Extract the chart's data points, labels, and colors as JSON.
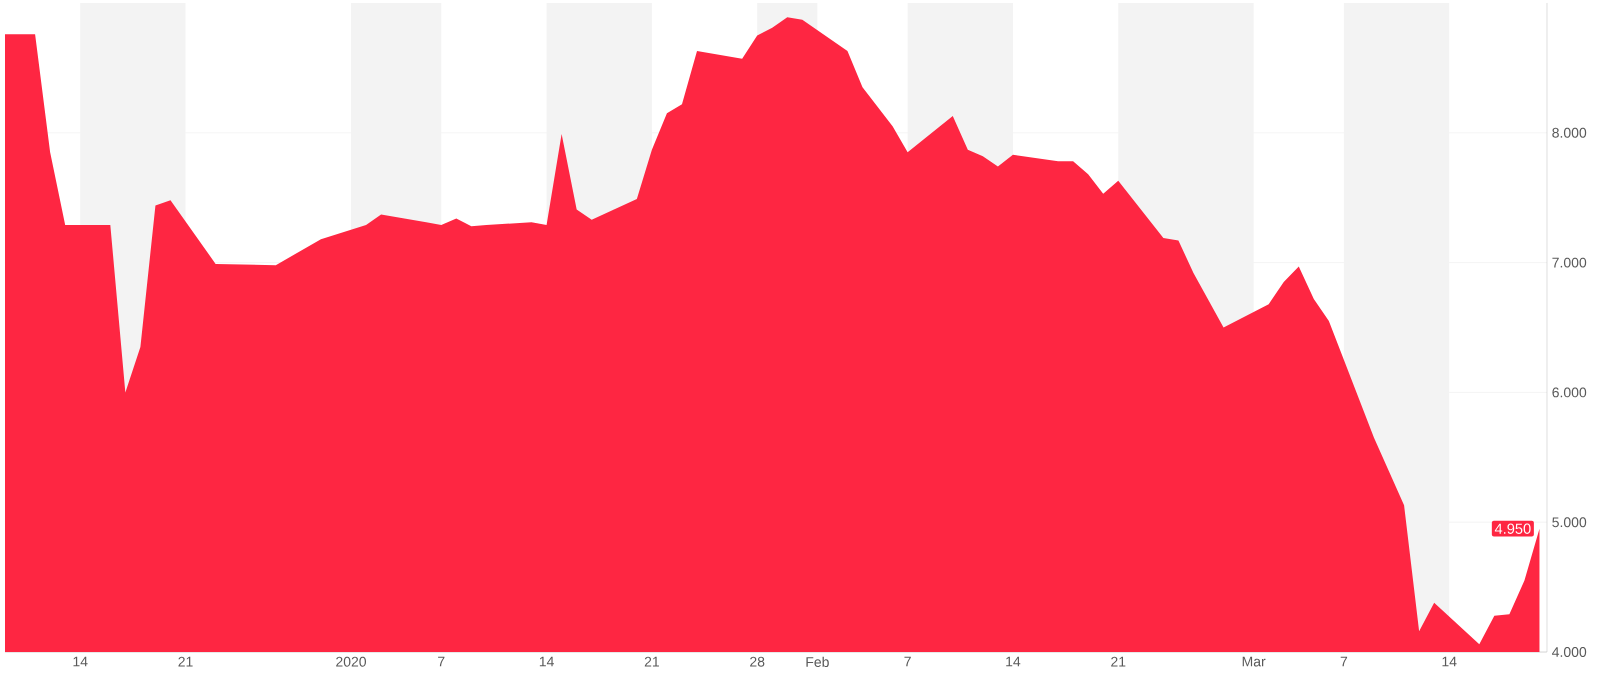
{
  "chart_data": {
    "type": "area",
    "color": "#fe2642",
    "x": [
      "2019-12-09",
      "2019-12-10",
      "2019-12-11",
      "2019-12-12",
      "2019-12-13",
      "2019-12-16",
      "2019-12-17",
      "2019-12-18",
      "2019-12-19",
      "2019-12-20",
      "2019-12-23",
      "2019-12-27",
      "2019-12-30",
      "2020-01-02",
      "2020-01-03",
      "2020-01-06",
      "2020-01-07",
      "2020-01-08",
      "2020-01-09",
      "2020-01-10",
      "2020-01-13",
      "2020-01-14",
      "2020-01-15",
      "2020-01-16",
      "2020-01-17",
      "2020-01-20",
      "2020-01-21",
      "2020-01-22",
      "2020-01-23",
      "2020-01-24",
      "2020-01-27",
      "2020-01-28",
      "2020-01-29",
      "2020-01-30",
      "2020-01-31",
      "2020-02-03",
      "2020-02-04",
      "2020-02-05",
      "2020-02-06",
      "2020-02-07",
      "2020-02-10",
      "2020-02-11",
      "2020-02-12",
      "2020-02-13",
      "2020-02-14",
      "2020-02-17",
      "2020-02-18",
      "2020-02-19",
      "2020-02-20",
      "2020-02-21",
      "2020-02-24",
      "2020-02-25",
      "2020-02-26",
      "2020-02-27",
      "2020-02-28",
      "2020-03-02",
      "2020-03-03",
      "2020-03-04",
      "2020-03-05",
      "2020-03-06",
      "2020-03-09",
      "2020-03-10",
      "2020-03-11",
      "2020-03-12",
      "2020-03-13",
      "2020-03-16",
      "2020-03-17",
      "2020-03-18",
      "2020-03-19",
      "2020-03-20"
    ],
    "values": [
      8.76,
      8.76,
      8.76,
      7.85,
      7.29,
      7.29,
      6.0,
      6.35,
      7.44,
      7.48,
      6.99,
      6.98,
      7.18,
      7.29,
      7.37,
      7.31,
      7.29,
      7.34,
      7.28,
      7.29,
      7.31,
      7.29,
      7.99,
      7.41,
      7.33,
      7.49,
      7.87,
      8.15,
      8.22,
      8.63,
      8.57,
      8.75,
      8.81,
      8.89,
      8.87,
      8.63,
      8.35,
      8.2,
      8.05,
      7.85,
      8.13,
      7.87,
      7.82,
      7.74,
      7.83,
      7.78,
      7.78,
      7.68,
      7.53,
      7.63,
      7.19,
      7.17,
      6.92,
      6.71,
      6.5,
      6.68,
      6.85,
      6.97,
      6.72,
      6.55,
      5.65,
      5.39,
      5.13,
      4.16,
      4.38,
      4.06,
      4.28,
      4.29,
      4.55,
      4.95
    ],
    "value_labels": [
      null,
      null,
      null,
      null,
      null,
      null,
      null,
      null,
      null,
      null,
      null,
      null,
      null,
      null,
      null,
      null,
      null,
      null,
      null,
      null,
      null,
      null,
      null,
      null,
      null,
      null,
      null,
      null,
      null,
      null,
      null,
      null,
      null,
      null,
      null,
      null,
      null,
      null,
      null,
      null,
      null,
      null,
      null,
      null,
      null,
      null,
      null,
      null,
      null,
      null,
      null,
      null,
      null,
      null,
      null,
      null,
      null,
      null,
      null,
      null,
      null,
      null,
      null,
      null,
      null,
      null,
      null,
      null,
      null,
      "4.950"
    ],
    "xlim": [
      "2019-12-09",
      "2020-03-20T12:00"
    ],
    "xticks": [
      {
        "value": "2019-12-14",
        "label": "14"
      },
      {
        "value": "2019-12-21",
        "label": "21"
      },
      {
        "value": "2020-01-01",
        "label": "2020"
      },
      {
        "value": "2020-01-07",
        "label": "7"
      },
      {
        "value": "2020-01-14",
        "label": "14"
      },
      {
        "value": "2020-01-21",
        "label": "21"
      },
      {
        "value": "2020-01-28",
        "label": "28"
      },
      {
        "value": "2020-02-01",
        "label": "Feb"
      },
      {
        "value": "2020-02-07",
        "label": "7"
      },
      {
        "value": "2020-02-14",
        "label": "14"
      },
      {
        "value": "2020-02-21",
        "label": "21"
      },
      {
        "value": "2020-03-01",
        "label": "Mar"
      },
      {
        "value": "2020-03-07",
        "label": "7"
      },
      {
        "value": "2020-03-14",
        "label": "14"
      }
    ],
    "ylim": [
      4,
      9
    ],
    "yticks": [
      {
        "value": 4,
        "label": "4.000"
      },
      {
        "value": 5,
        "label": "5.000"
      },
      {
        "value": 6,
        "label": "6.000"
      },
      {
        "value": 7,
        "label": "7.000"
      },
      {
        "value": 8,
        "label": "8.000"
      }
    ],
    "grid": "y",
    "bands": [
      {
        "axis": "x",
        "from": "2019-12-14",
        "to": "2019-12-21",
        "color": "#f3f3f3"
      },
      {
        "axis": "x",
        "from": "2020-01-01",
        "to": "2020-01-07",
        "color": "#f3f3f3"
      },
      {
        "axis": "x",
        "from": "2020-01-14",
        "to": "2020-01-21",
        "color": "#f3f3f3"
      },
      {
        "axis": "x",
        "from": "2020-01-28",
        "to": "2020-02-01",
        "color": "#f3f3f3"
      },
      {
        "axis": "x",
        "from": "2020-02-07",
        "to": "2020-02-14",
        "color": "#f3f3f3"
      },
      {
        "axis": "x",
        "from": "2020-02-21",
        "to": "2020-03-01",
        "color": "#f3f3f3"
      },
      {
        "axis": "x",
        "from": "2020-03-07",
        "to": "2020-03-14",
        "color": "#f3f3f3"
      }
    ]
  }
}
